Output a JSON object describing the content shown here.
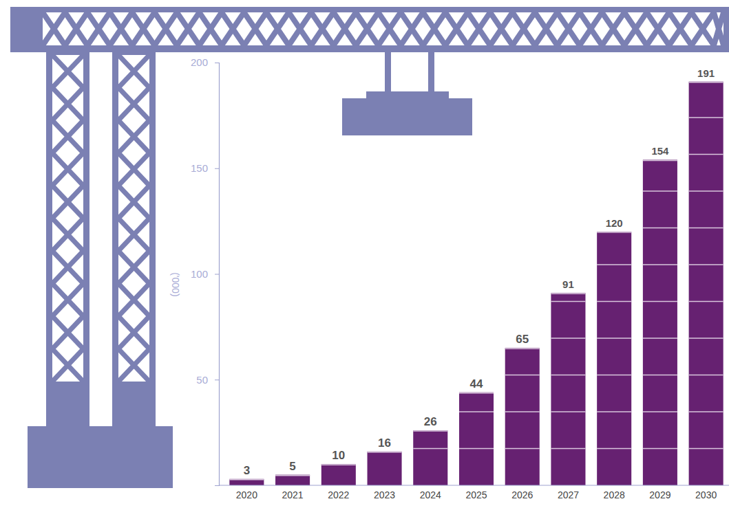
{
  "chart_data": {
    "type": "bar",
    "y_label": "('000)",
    "categories": [
      "2020",
      "2021",
      "2022",
      "2023",
      "2024",
      "2025",
      "2026",
      "2027",
      "2028",
      "2029",
      "2030"
    ],
    "values": [
      3,
      5,
      10,
      16,
      26,
      44,
      65,
      91,
      120,
      154,
      191
    ],
    "color": "#662171",
    "ylim": [
      0,
      200
    ],
    "yticks": [
      50,
      100,
      150,
      200
    ],
    "grid": false,
    "data_labels": true
  }
}
